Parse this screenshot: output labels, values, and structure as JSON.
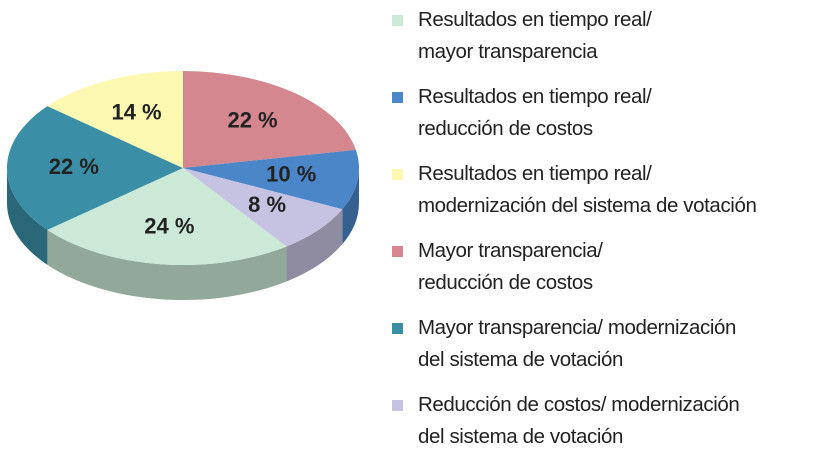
{
  "chart_data": {
    "type": "pie",
    "series": [
      {
        "name": "Mayor transparencia/\nreducción de costos",
        "color": "#d4878e",
        "values": [
          22
        ],
        "value_labels": [
          "22 %"
        ]
      },
      {
        "name": "Resultados en tiempo real/\nreducción de costos",
        "color": "#4a86c8",
        "values": [
          10
        ],
        "value_labels": [
          "10 %"
        ]
      },
      {
        "name": "Reducción de costos/ modernización\ndel sistema de votación",
        "color": "#c6c2e1",
        "values": [
          8
        ],
        "value_labels": [
          "8 %"
        ]
      },
      {
        "name": "Resultados en tiempo real/\nmayor transparencia",
        "color": "#cbe9d6",
        "values": [
          24
        ],
        "value_labels": [
          "24 %"
        ]
      },
      {
        "name": "Mayor transparencia/ modernización\ndel sistema de votación",
        "color": "#3a8fa6",
        "values": [
          22
        ],
        "value_labels": [
          "22 %"
        ]
      },
      {
        "name": "Resultados en tiempo real/\nmodernización del sistema de votación",
        "color": "#fdf8b2",
        "values": [
          14
        ],
        "value_labels": [
          "14 %"
        ]
      }
    ],
    "legend_order": [
      3,
      1,
      5,
      0,
      4,
      2
    ]
  }
}
